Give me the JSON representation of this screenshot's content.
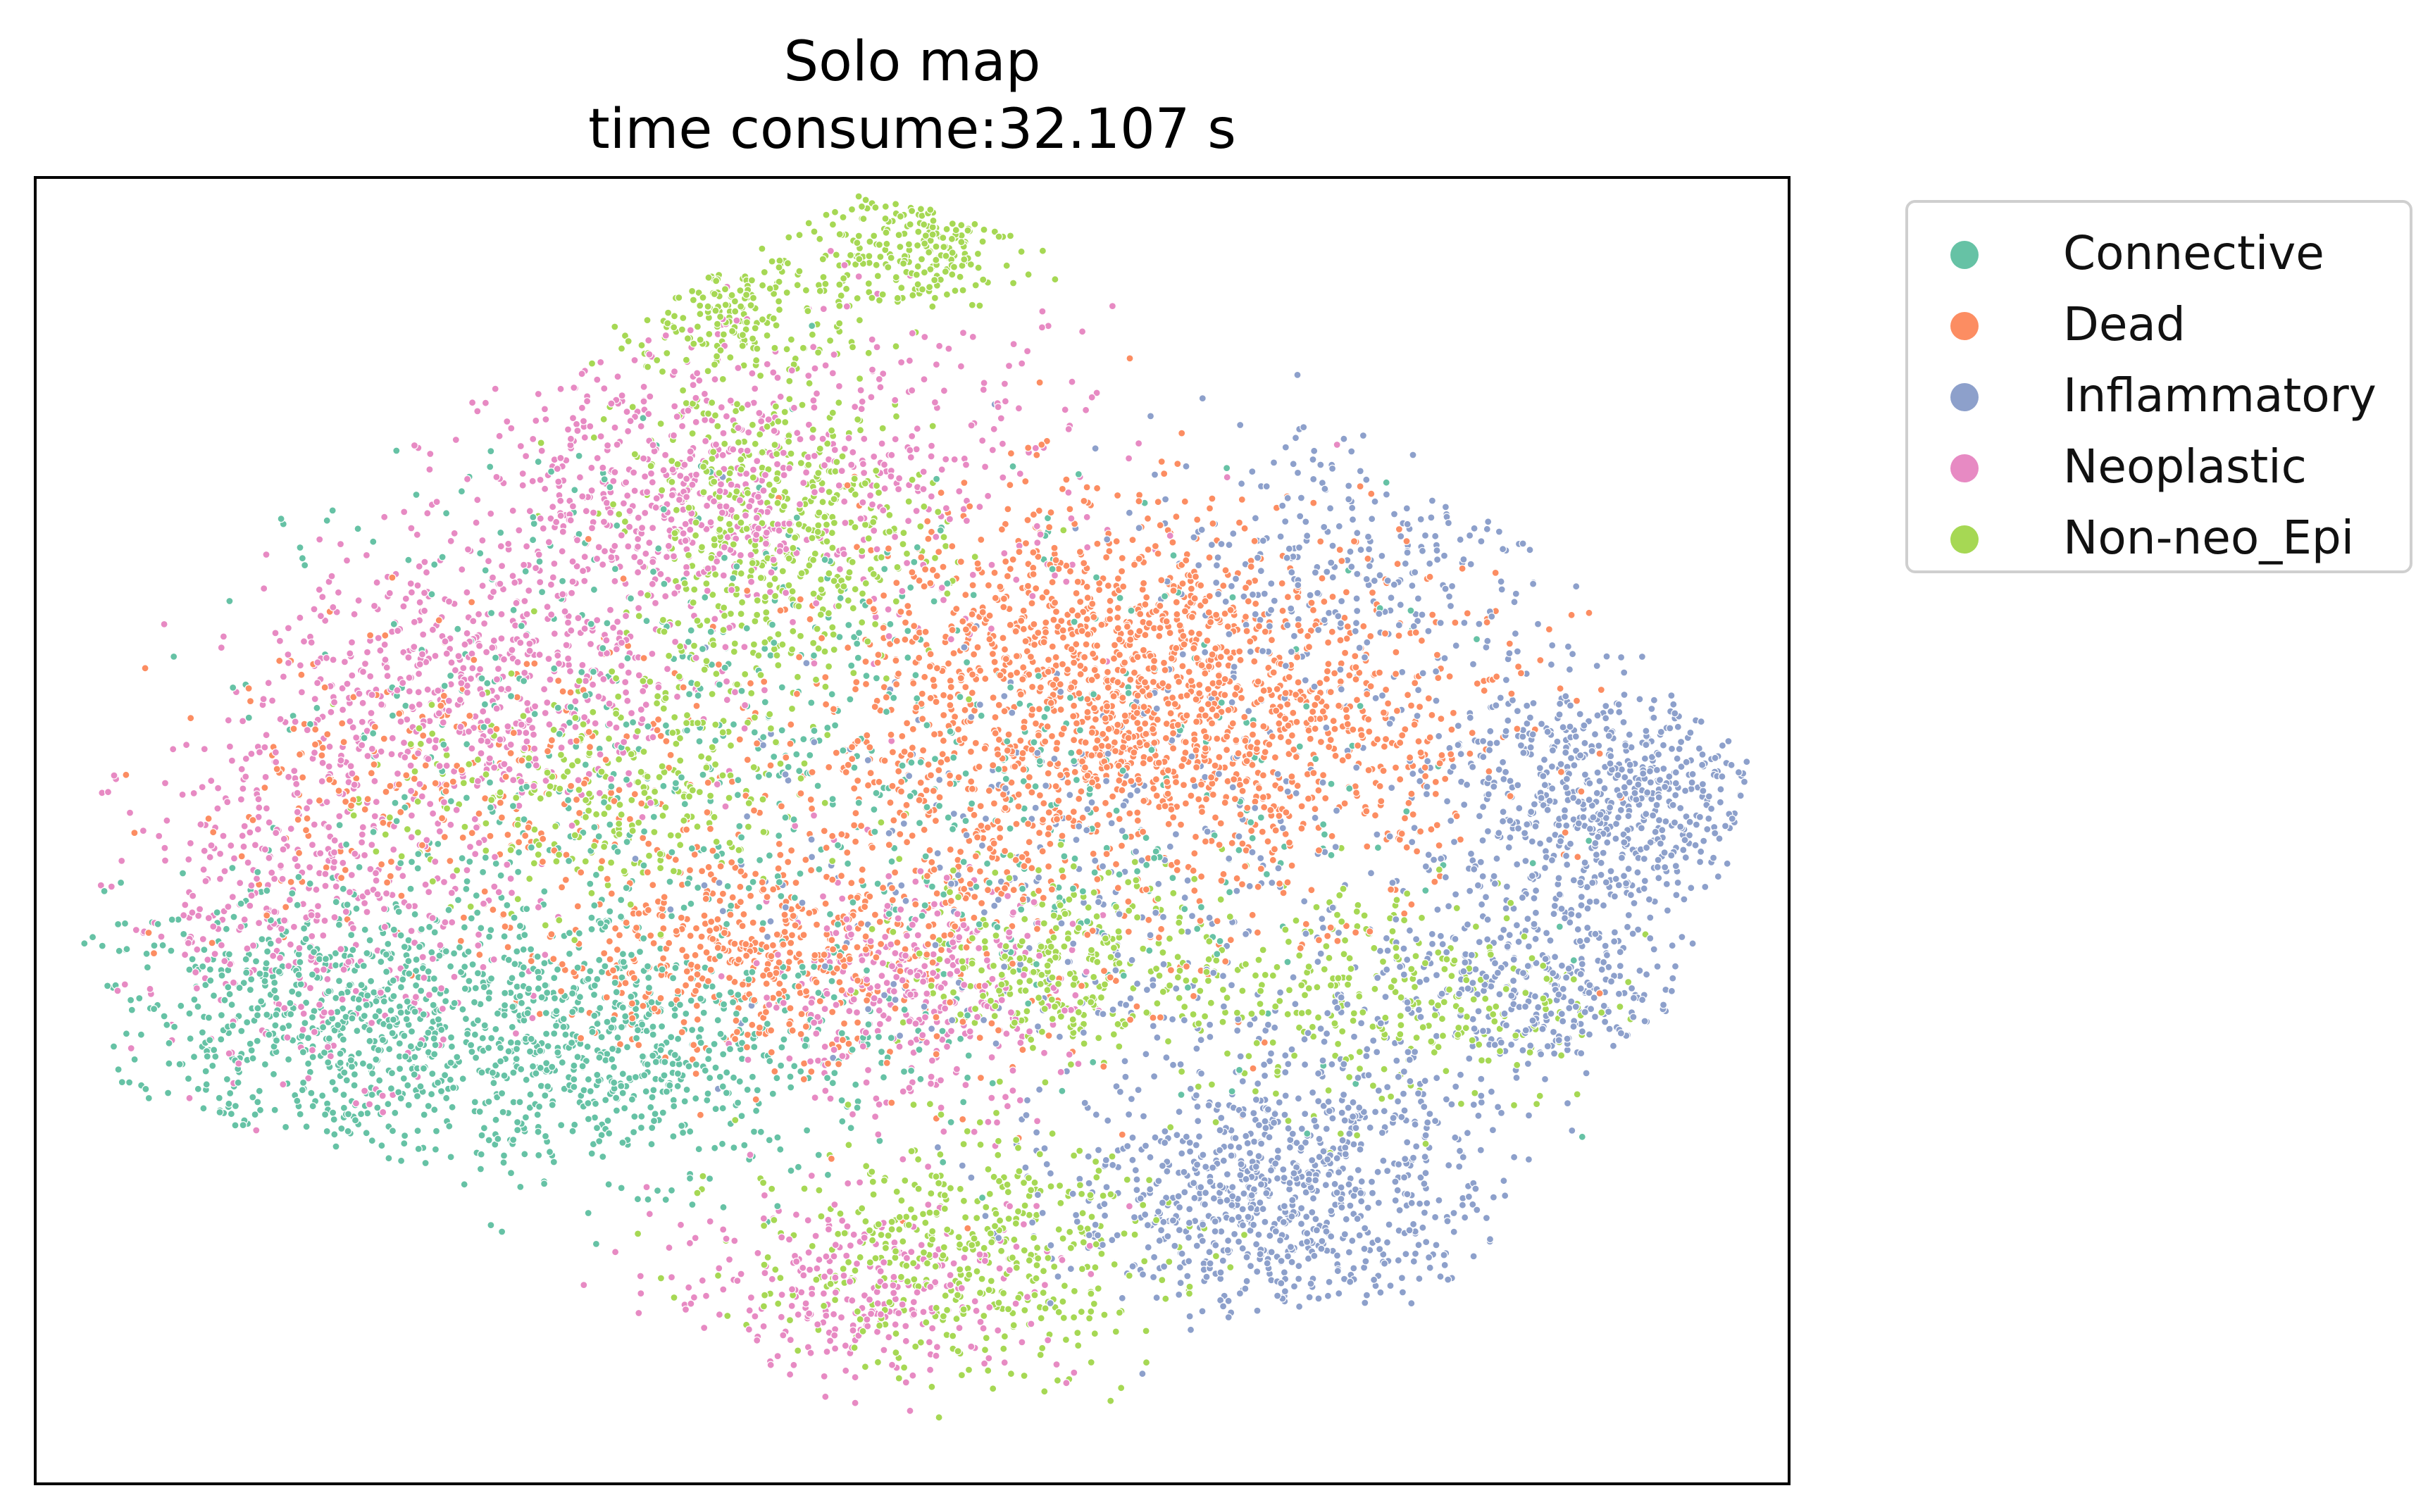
{
  "chart_data": {
    "type": "scatter",
    "title": "Solo map",
    "subtitle": "time consume:32.107 s",
    "xlabel": "",
    "ylabel": "",
    "xticks": [],
    "yticks": [],
    "grid": false,
    "legend_placement": "outside-upper-right",
    "series": [
      {
        "name": "Connective",
        "color": "#66c2a5",
        "regions": [
          {
            "cx": -0.62,
            "cy": -0.3,
            "rx": 0.3,
            "ry": 0.18,
            "n": 900
          },
          {
            "cx": -0.3,
            "cy": -0.35,
            "rx": 0.22,
            "ry": 0.15,
            "n": 450
          },
          {
            "cx": 0.0,
            "cy": 0.05,
            "rx": 0.45,
            "ry": 0.4,
            "n": 500
          },
          {
            "cx": -0.4,
            "cy": 0.2,
            "rx": 0.3,
            "ry": 0.35,
            "n": 250
          }
        ]
      },
      {
        "name": "Dead",
        "color": "#fc8d62",
        "regions": [
          {
            "cx": 0.2,
            "cy": 0.25,
            "rx": 0.22,
            "ry": 0.22,
            "n": 900
          },
          {
            "cx": 0.4,
            "cy": 0.15,
            "rx": 0.25,
            "ry": 0.22,
            "n": 700
          },
          {
            "cx": -0.2,
            "cy": -0.2,
            "rx": 0.18,
            "ry": 0.12,
            "n": 400
          },
          {
            "cx": 0.05,
            "cy": 0.0,
            "rx": 0.3,
            "ry": 0.3,
            "n": 500
          },
          {
            "cx": -0.55,
            "cy": 0.05,
            "rx": 0.25,
            "ry": 0.2,
            "n": 250
          }
        ]
      },
      {
        "name": "Inflammatory",
        "color": "#8da0cb",
        "regions": [
          {
            "cx": 0.8,
            "cy": 0.05,
            "rx": 0.18,
            "ry": 0.15,
            "n": 650
          },
          {
            "cx": 0.42,
            "cy": -0.55,
            "rx": 0.2,
            "ry": 0.17,
            "n": 850
          },
          {
            "cx": 0.7,
            "cy": -0.25,
            "rx": 0.15,
            "ry": 0.12,
            "n": 350
          },
          {
            "cx": 0.5,
            "cy": 0.4,
            "rx": 0.2,
            "ry": 0.2,
            "n": 300
          },
          {
            "cx": 0.2,
            "cy": -0.1,
            "rx": 0.35,
            "ry": 0.3,
            "n": 350
          }
        ]
      },
      {
        "name": "Neoplastic",
        "color": "#e78ac3",
        "regions": [
          {
            "cx": -0.5,
            "cy": 0.22,
            "rx": 0.2,
            "ry": 0.18,
            "n": 550
          },
          {
            "cx": -0.3,
            "cy": 0.5,
            "rx": 0.18,
            "ry": 0.2,
            "n": 500
          },
          {
            "cx": -0.68,
            "cy": -0.1,
            "rx": 0.18,
            "ry": 0.22,
            "n": 450
          },
          {
            "cx": 0.0,
            "cy": -0.25,
            "rx": 0.15,
            "ry": 0.15,
            "n": 350
          },
          {
            "cx": -0.05,
            "cy": -0.7,
            "rx": 0.2,
            "ry": 0.12,
            "n": 300
          },
          {
            "cx": -0.05,
            "cy": 0.55,
            "rx": 0.25,
            "ry": 0.2,
            "n": 300
          }
        ]
      },
      {
        "name": "Non-neo_Epi",
        "color": "#a6d854",
        "regions": [
          {
            "cx": -0.15,
            "cy": 0.45,
            "rx": 0.15,
            "ry": 0.2,
            "n": 500
          },
          {
            "cx": 0.0,
            "cy": 0.9,
            "rx": 0.1,
            "ry": 0.08,
            "n": 200
          },
          {
            "cx": -0.2,
            "cy": 0.8,
            "rx": 0.12,
            "ry": 0.1,
            "n": 200
          },
          {
            "cx": 0.05,
            "cy": -0.65,
            "rx": 0.2,
            "ry": 0.15,
            "n": 450
          },
          {
            "cx": 0.18,
            "cy": -0.2,
            "rx": 0.15,
            "ry": 0.12,
            "n": 300
          },
          {
            "cx": -0.35,
            "cy": 0.05,
            "rx": 0.2,
            "ry": 0.15,
            "n": 300
          },
          {
            "cx": 0.55,
            "cy": -0.25,
            "rx": 0.2,
            "ry": 0.15,
            "n": 300
          }
        ]
      }
    ]
  }
}
